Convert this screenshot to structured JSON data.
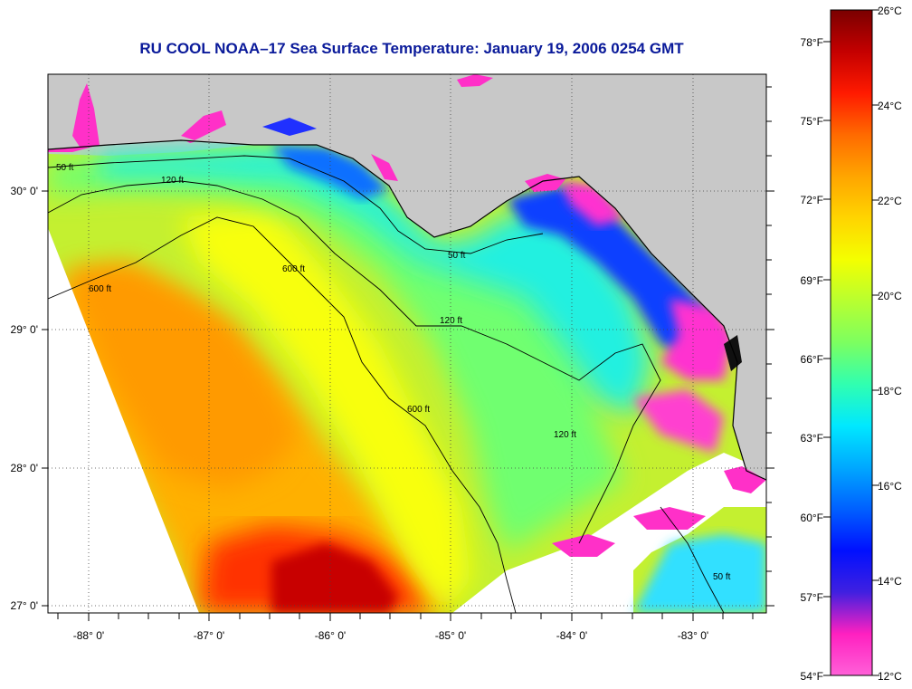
{
  "title": "RU COOL  NOAA–17  Sea Surface Temperature:  January 19, 2006 0254 GMT",
  "map": {
    "lon_labels": [
      "-88° 0'",
      "-87° 0'",
      "-86° 0'",
      "-85° 0'",
      "-84° 0'",
      "-83° 0'"
    ],
    "lat_labels": [
      "30° 0'",
      "29° 0'",
      "28° 0'",
      "27° 0'"
    ],
    "depth_contour_labels": [
      "50 ft",
      "120 ft",
      "600 ft",
      "120 ft",
      "600 ft",
      "120 ft",
      "50 ft",
      "600 ft",
      "50 ft"
    ],
    "land_color": "#c8c8c8",
    "no_data_color": "#ffffff"
  },
  "colorbar": {
    "celsius_labels": [
      "26°C",
      "24°C",
      "22°C",
      "20°C",
      "18°C",
      "16°C",
      "14°C",
      "12°C"
    ],
    "fahrenheit_labels": [
      "78°F",
      "75°F",
      "72°F",
      "69°F",
      "66°F",
      "63°F",
      "60°F",
      "57°F",
      "54°F"
    ],
    "gradient_colors": [
      "#7a0000",
      "#c40000",
      "#ff1a00",
      "#ff6a00",
      "#ffa500",
      "#ffd400",
      "#f4ff00",
      "#b8ff30",
      "#7cff60",
      "#30ffb0",
      "#00e8ff",
      "#00a8ff",
      "#0060ff",
      "#0010ff",
      "#4020e0",
      "#ff20c0",
      "#ff60d8"
    ]
  }
}
